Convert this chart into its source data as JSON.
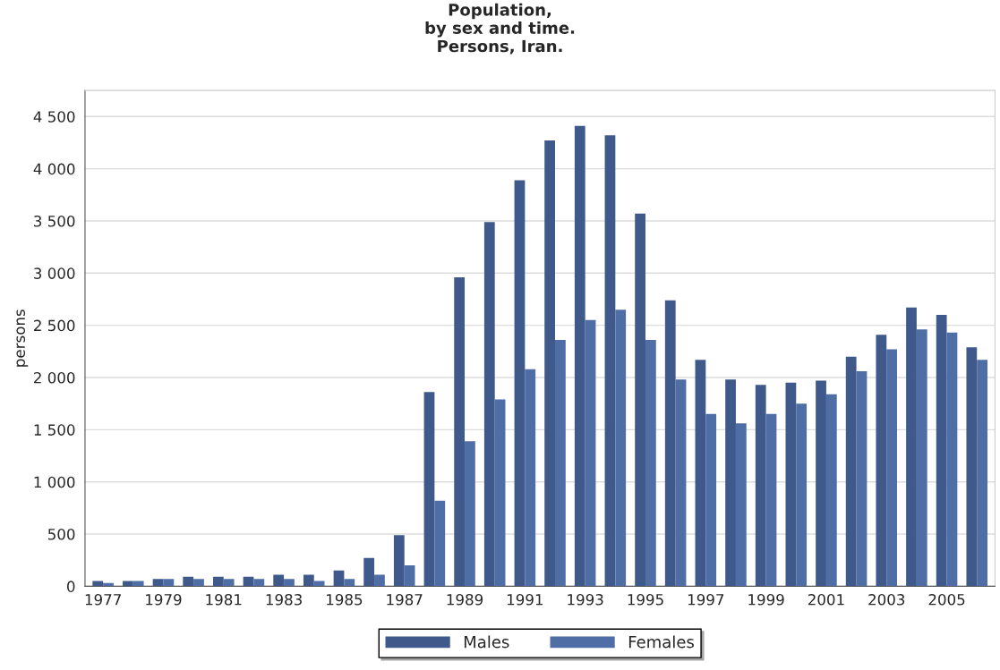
{
  "chart_data": {
    "type": "bar",
    "title": "Population,\nby sex and time.\nPersons, Iran.",
    "ylabel": "persons",
    "categories": [
      "1977",
      null,
      "1979",
      null,
      "1981",
      null,
      "1983",
      null,
      "1985",
      null,
      "1987",
      null,
      "1989",
      null,
      "1991",
      null,
      "1993",
      null,
      "1995",
      null,
      "1997",
      null,
      "1999",
      null,
      "2001",
      null,
      "2003",
      null,
      "2005",
      null
    ],
    "series": [
      {
        "name": "Males",
        "color": "#3f5a8a",
        "values": [
          50,
          50,
          70,
          90,
          90,
          90,
          110,
          110,
          150,
          270,
          490,
          1860,
          2960,
          3490,
          3890,
          4270,
          4410,
          4320,
          3570,
          2740,
          2170,
          1980,
          1930,
          1950,
          1970,
          2200,
          2410,
          2670,
          2600,
          2290
        ]
      },
      {
        "name": "Females",
        "color": "#4f6ea6",
        "values": [
          30,
          50,
          70,
          70,
          70,
          70,
          70,
          50,
          70,
          110,
          200,
          820,
          1390,
          1790,
          2080,
          2360,
          2550,
          2650,
          2360,
          1980,
          1650,
          1560,
          1650,
          1750,
          1840,
          2060,
          2270,
          2460,
          2430,
          2170
        ]
      }
    ],
    "ylim": [
      0,
      4750
    ],
    "yticks": [
      0,
      500,
      {
        "value": 1000,
        "label": "1 000"
      },
      {
        "value": 1500,
        "label": "1 500"
      },
      {
        "value": 2000,
        "label": "2 000"
      },
      {
        "value": 2500,
        "label": "2 500"
      },
      {
        "value": 3000,
        "label": "3 000"
      },
      {
        "value": 3500,
        "label": "3 500"
      },
      {
        "value": 4000,
        "label": "4 000"
      },
      {
        "value": 4500,
        "label": "4 500"
      }
    ],
    "grid": "y",
    "legend": "bottom"
  }
}
